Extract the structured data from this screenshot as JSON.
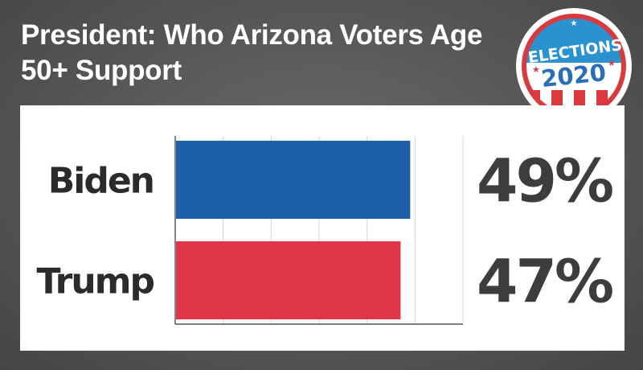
{
  "title": "President: Who Arizona Voters Age 50+ Support",
  "badge": {
    "line1": "ELECTIONS",
    "line2": "2020"
  },
  "colors": {
    "biden": "#1d5fa8",
    "trump": "#e0364a",
    "grid": "#d6d6d6",
    "axis": "#333333"
  },
  "chart_data": {
    "type": "bar",
    "orientation": "horizontal",
    "categories": [
      "Biden",
      "Trump"
    ],
    "values": [
      49,
      47
    ],
    "value_labels": [
      "49%",
      "47%"
    ],
    "xlim": [
      0,
      60
    ],
    "grid": true,
    "title": "President: Who Arizona Voters Age 50+ Support"
  }
}
